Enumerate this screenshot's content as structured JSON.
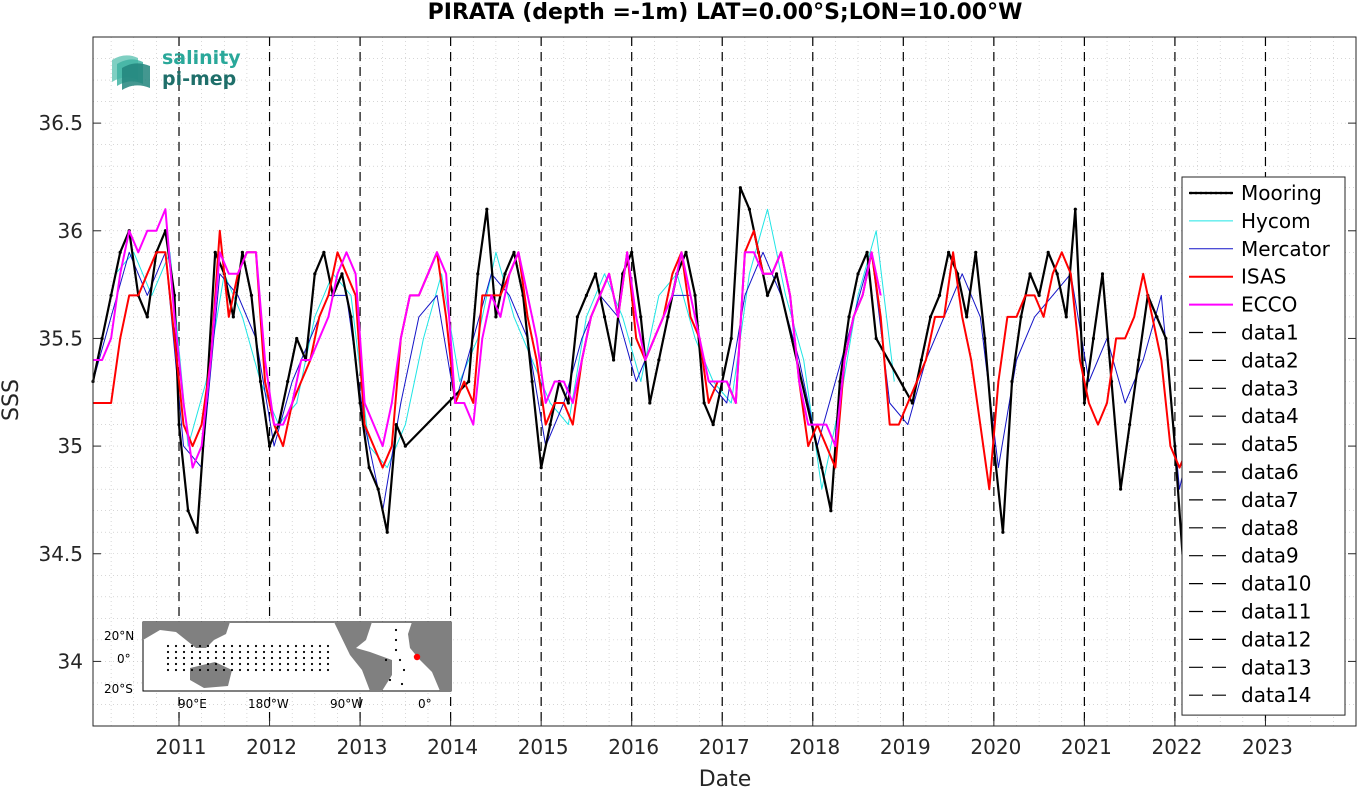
{
  "chart_data": {
    "type": "line",
    "title": "PIRATA (depth =-1m) LAT=0.00°S;LON=10.00°W",
    "xlabel": "Date",
    "ylabel": "SSS",
    "xlim": [
      2010.05,
      2024.0
    ],
    "ylim": [
      33.7,
      36.9
    ],
    "grid": true,
    "legend_position": "right",
    "x_ticks": [
      2011,
      2012,
      2013,
      2014,
      2015,
      2016,
      2017,
      2018,
      2019,
      2020,
      2021,
      2022,
      2023
    ],
    "x_tick_labels": [
      "2011",
      "2012",
      "2013",
      "2014",
      "2015",
      "2016",
      "2017",
      "2018",
      "2019",
      "2020",
      "2021",
      "2022",
      "2023"
    ],
    "y_ticks": [
      34,
      34.5,
      35,
      35.5,
      36,
      36.5
    ],
    "y_tick_labels": [
      "34",
      "34.5",
      "35",
      "35.5",
      "36",
      "36.5"
    ],
    "vlines": [
      2011,
      2012,
      2013,
      2014,
      2015,
      2016,
      2017,
      2018,
      2019,
      2020,
      2021,
      2022,
      2023
    ],
    "series": [
      {
        "name": "Mooring",
        "color": "#000000",
        "style": "solid-dots",
        "x": [
          2010.05,
          2010.15,
          2010.25,
          2010.35,
          2010.45,
          2010.55,
          2010.65,
          2010.75,
          2010.85,
          2010.95,
          2011.0,
          2011.1,
          2011.2,
          2011.3,
          2011.4,
          2011.5,
          2011.6,
          2011.7,
          2011.8,
          2011.9,
          2012.0,
          2012.1,
          2012.2,
          2012.3,
          2012.4,
          2012.5,
          2012.6,
          2012.7,
          2012.8,
          2012.9,
          2013.0,
          2013.1,
          2013.2,
          2013.3,
          2013.4,
          2013.5,
          2014.2,
          2014.3,
          2014.4,
          2014.5,
          2014.6,
          2014.7,
          2014.8,
          2014.9,
          2015.0,
          2015.1,
          2015.2,
          2015.3,
          2015.4,
          2015.5,
          2015.6,
          2015.7,
          2015.8,
          2015.9,
          2016.0,
          2016.1,
          2016.2,
          2016.3,
          2016.4,
          2016.5,
          2016.6,
          2016.7,
          2016.8,
          2016.9,
          2017.0,
          2017.1,
          2017.2,
          2017.3,
          2017.4,
          2017.5,
          2017.6,
          2018.1,
          2018.2,
          2018.3,
          2018.4,
          2018.5,
          2018.6,
          2018.7,
          2019.1,
          2019.2,
          2019.3,
          2019.4,
          2019.5,
          2019.6,
          2019.7,
          2019.8,
          2019.9,
          2020.0,
          2020.1,
          2020.2,
          2020.3,
          2020.4,
          2020.5,
          2020.6,
          2020.7,
          2020.8,
          2020.9,
          2021.0,
          2021.1,
          2021.2,
          2021.3,
          2021.4,
          2021.5,
          2021.6,
          2021.7,
          2021.8,
          2021.9,
          2022.0,
          2022.1,
          2022.2,
          2022.3,
          2022.4
        ],
        "y": [
          35.3,
          35.5,
          35.7,
          35.9,
          36.0,
          35.7,
          35.6,
          35.9,
          36.0,
          35.7,
          35.1,
          34.7,
          34.6,
          35.2,
          35.9,
          35.8,
          35.6,
          35.9,
          35.7,
          35.3,
          35.0,
          35.1,
          35.3,
          35.5,
          35.4,
          35.8,
          35.9,
          35.7,
          35.8,
          35.6,
          35.2,
          34.9,
          34.8,
          34.6,
          35.1,
          35.0,
          35.3,
          35.8,
          36.1,
          35.6,
          35.8,
          35.9,
          35.7,
          35.3,
          34.9,
          35.1,
          35.3,
          35.2,
          35.6,
          35.7,
          35.8,
          35.6,
          35.4,
          35.8,
          35.9,
          35.6,
          35.2,
          35.4,
          35.6,
          35.8,
          35.9,
          35.7,
          35.2,
          35.1,
          35.3,
          35.5,
          36.2,
          36.1,
          35.9,
          35.7,
          35.8,
          34.9,
          34.7,
          35.3,
          35.6,
          35.8,
          35.9,
          35.5,
          35.2,
          35.4,
          35.6,
          35.7,
          35.9,
          35.8,
          35.6,
          35.9,
          35.5,
          35.0,
          34.6,
          35.3,
          35.6,
          35.8,
          35.7,
          35.9,
          35.8,
          35.6,
          36.1,
          35.2,
          35.5,
          35.8,
          35.3,
          34.8,
          35.1,
          35.4,
          35.7,
          35.6,
          35.5,
          35.0,
          34.4,
          35.0,
          35.3,
          35.6
        ]
      },
      {
        "name": "Hycom",
        "color": "#1ee5e5",
        "style": "solid",
        "x": [
          2010.1,
          2010.3,
          2010.5,
          2010.7,
          2010.9,
          2011.1,
          2011.3,
          2011.5,
          2011.7,
          2011.9,
          2012.1,
          2012.3,
          2012.5,
          2012.7,
          2012.9,
          2013.1,
          2013.3,
          2013.5,
          2013.7,
          2013.9,
          2014.1,
          2014.3,
          2014.5,
          2014.7,
          2014.9,
          2015.1,
          2015.3,
          2015.5,
          2015.7,
          2015.9,
          2016.1,
          2016.3,
          2016.5,
          2016.7,
          2016.9,
          2017.1,
          2017.3,
          2017.5,
          2017.7,
          2017.9,
          2018.1,
          2018.3,
          2018.5,
          2018.7,
          2018.9
        ],
        "y": [
          35.4,
          35.8,
          35.9,
          35.7,
          35.9,
          35.0,
          35.3,
          35.8,
          35.6,
          35.3,
          35.1,
          35.2,
          35.6,
          35.8,
          35.7,
          35.0,
          34.9,
          35.1,
          35.5,
          35.8,
          35.3,
          35.5,
          35.9,
          35.6,
          35.4,
          35.2,
          35.1,
          35.6,
          35.8,
          35.6,
          35.3,
          35.7,
          35.8,
          35.5,
          35.3,
          35.2,
          35.8,
          36.1,
          35.7,
          35.4,
          34.8,
          35.2,
          35.7,
          36.0,
          35.3
        ]
      },
      {
        "name": "Mercator",
        "color": "#1414c8",
        "style": "solid",
        "x": [
          2010.05,
          2010.25,
          2010.45,
          2010.65,
          2010.85,
          2011.05,
          2011.25,
          2011.45,
          2011.65,
          2011.85,
          2012.05,
          2012.25,
          2012.45,
          2012.65,
          2012.85,
          2013.05,
          2013.25,
          2013.45,
          2013.65,
          2013.85,
          2014.05,
          2014.25,
          2014.45,
          2014.65,
          2014.85,
          2015.05,
          2015.25,
          2015.45,
          2015.65,
          2015.85,
          2016.05,
          2016.25,
          2016.45,
          2016.65,
          2016.85,
          2017.05,
          2017.25,
          2017.45,
          2017.65,
          2017.85,
          2018.05,
          2018.25,
          2018.45,
          2018.65,
          2018.85,
          2019.05,
          2019.25,
          2019.45,
          2019.65,
          2019.85,
          2020.05,
          2020.25,
          2020.45,
          2020.65,
          2020.85,
          2021.05,
          2021.25,
          2021.45,
          2021.65,
          2021.85,
          2022.05,
          2022.25,
          2022.45
        ],
        "y": [
          35.3,
          35.6,
          35.9,
          35.7,
          35.9,
          35.0,
          34.9,
          35.8,
          35.7,
          35.5,
          35.0,
          35.3,
          35.5,
          35.7,
          35.7,
          35.1,
          34.7,
          35.2,
          35.6,
          35.7,
          35.2,
          35.5,
          35.8,
          35.7,
          35.5,
          35.0,
          35.2,
          35.5,
          35.7,
          35.6,
          35.3,
          35.5,
          35.7,
          35.7,
          35.3,
          35.2,
          35.7,
          35.9,
          35.7,
          35.4,
          35.0,
          35.3,
          35.6,
          35.9,
          35.2,
          35.1,
          35.4,
          35.6,
          35.8,
          35.6,
          34.9,
          35.4,
          35.6,
          35.7,
          35.8,
          35.3,
          35.5,
          35.2,
          35.4,
          35.7,
          34.8,
          35.2,
          35.5
        ]
      },
      {
        "name": "ISAS",
        "color": "#ff0000",
        "style": "solid",
        "x": [
          2010.05,
          2010.15,
          2010.25,
          2010.35,
          2010.45,
          2010.55,
          2010.65,
          2010.75,
          2010.85,
          2010.95,
          2011.05,
          2011.15,
          2011.25,
          2011.35,
          2011.45,
          2011.55,
          2011.65,
          2011.75,
          2011.85,
          2011.95,
          2012.05,
          2012.15,
          2012.25,
          2012.35,
          2012.45,
          2012.55,
          2012.65,
          2012.75,
          2012.85,
          2012.95,
          2013.05,
          2013.15,
          2013.25,
          2013.35,
          2013.45,
          2013.55,
          2013.65,
          2013.75,
          2013.85,
          2013.95,
          2014.05,
          2014.15,
          2014.25,
          2014.35,
          2014.45,
          2014.55,
          2014.65,
          2014.75,
          2014.85,
          2014.95,
          2015.05,
          2015.15,
          2015.25,
          2015.35,
          2015.45,
          2015.55,
          2015.65,
          2015.75,
          2015.85,
          2015.95,
          2016.05,
          2016.15,
          2016.25,
          2016.35,
          2016.45,
          2016.55,
          2016.65,
          2016.75,
          2016.85,
          2016.95,
          2017.05,
          2017.15,
          2017.25,
          2017.35,
          2017.45,
          2017.55,
          2017.65,
          2017.75,
          2017.85,
          2017.95,
          2018.05,
          2018.15,
          2018.25,
          2018.35,
          2018.45,
          2018.55,
          2018.65,
          2018.75,
          2018.85,
          2018.95,
          2019.05,
          2019.15,
          2019.25,
          2019.35,
          2019.45,
          2019.55,
          2019.65,
          2019.75,
          2019.85,
          2019.95,
          2020.05,
          2020.15,
          2020.25,
          2020.35,
          2020.45,
          2020.55,
          2020.65,
          2020.75,
          2020.85,
          2020.95,
          2021.05,
          2021.15,
          2021.25,
          2021.35,
          2021.45,
          2021.55,
          2021.65,
          2021.75,
          2021.85,
          2021.95,
          2022.05,
          2022.15,
          2022.25,
          2022.35,
          2022.45
        ],
        "y": [
          35.2,
          35.2,
          35.2,
          35.5,
          35.7,
          35.7,
          35.8,
          35.9,
          35.9,
          35.5,
          35.1,
          35.0,
          35.1,
          35.4,
          36.0,
          35.6,
          35.8,
          35.9,
          35.9,
          35.3,
          35.1,
          35.0,
          35.2,
          35.3,
          35.4,
          35.6,
          35.7,
          35.9,
          35.8,
          35.7,
          35.1,
          35.0,
          34.9,
          35.0,
          35.5,
          35.7,
          35.7,
          35.8,
          35.9,
          35.6,
          35.2,
          35.3,
          35.2,
          35.7,
          35.7,
          35.7,
          35.8,
          35.9,
          35.6,
          35.4,
          35.1,
          35.2,
          35.2,
          35.1,
          35.4,
          35.6,
          35.7,
          35.8,
          35.6,
          35.9,
          35.5,
          35.4,
          35.5,
          35.6,
          35.8,
          35.9,
          35.6,
          35.5,
          35.2,
          35.3,
          35.3,
          35.2,
          35.9,
          36.0,
          35.8,
          35.8,
          35.9,
          35.7,
          35.3,
          35.0,
          35.1,
          35.0,
          34.9,
          35.4,
          35.6,
          35.7,
          35.9,
          35.6,
          35.1,
          35.1,
          35.2,
          35.3,
          35.4,
          35.6,
          35.6,
          35.9,
          35.6,
          35.4,
          35.1,
          34.8,
          35.3,
          35.6,
          35.6,
          35.7,
          35.7,
          35.6,
          35.8,
          35.9,
          35.8,
          35.4,
          35.2,
          35.1,
          35.2,
          35.5,
          35.5,
          35.6,
          35.8,
          35.6,
          35.4,
          35.0,
          34.9,
          35.0,
          35.3,
          35.4,
          35.4
        ]
      },
      {
        "name": "ECCO",
        "color": "#ff00ff",
        "style": "solid",
        "x": [
          2010.05,
          2010.15,
          2010.25,
          2010.35,
          2010.45,
          2010.55,
          2010.65,
          2010.75,
          2010.85,
          2010.95,
          2011.05,
          2011.15,
          2011.25,
          2011.35,
          2011.45,
          2011.55,
          2011.65,
          2011.75,
          2011.85,
          2011.95,
          2012.05,
          2012.15,
          2012.25,
          2012.35,
          2012.45,
          2012.55,
          2012.65,
          2012.75,
          2012.85,
          2012.95,
          2013.05,
          2013.15,
          2013.25,
          2013.35,
          2013.45,
          2013.55,
          2013.65,
          2013.75,
          2013.85,
          2013.95,
          2014.05,
          2014.15,
          2014.25,
          2014.35,
          2014.45,
          2014.55,
          2014.65,
          2014.75,
          2014.85,
          2014.95,
          2015.05,
          2015.15,
          2015.25,
          2015.35,
          2015.45,
          2015.55,
          2015.65,
          2015.75,
          2015.85,
          2015.95,
          2016.05,
          2016.15,
          2016.25,
          2016.35,
          2016.45,
          2016.55,
          2016.65,
          2016.75,
          2016.85,
          2016.95,
          2017.05,
          2017.15,
          2017.25,
          2017.35,
          2017.45,
          2017.55,
          2017.65,
          2017.75,
          2017.85,
          2017.95,
          2018.05,
          2018.15,
          2018.25,
          2018.35,
          2018.45,
          2018.55,
          2018.65,
          2018.75
        ],
        "y": [
          35.4,
          35.4,
          35.5,
          35.8,
          36.0,
          35.9,
          36.0,
          36.0,
          36.1,
          35.6,
          35.2,
          34.9,
          35.0,
          35.4,
          35.9,
          35.8,
          35.8,
          35.9,
          35.9,
          35.4,
          35.1,
          35.1,
          35.2,
          35.4,
          35.4,
          35.5,
          35.6,
          35.8,
          35.9,
          35.8,
          35.2,
          35.1,
          35.0,
          35.2,
          35.5,
          35.7,
          35.7,
          35.8,
          35.9,
          35.8,
          35.2,
          35.2,
          35.1,
          35.5,
          35.7,
          35.6,
          35.8,
          35.9,
          35.7,
          35.5,
          35.2,
          35.3,
          35.3,
          35.2,
          35.4,
          35.6,
          35.7,
          35.8,
          35.6,
          35.9,
          35.6,
          35.4,
          35.5,
          35.6,
          35.7,
          35.9,
          35.7,
          35.5,
          35.3,
          35.3,
          35.3,
          35.2,
          35.9,
          35.9,
          35.8,
          35.8,
          35.9,
          35.7,
          35.3,
          35.1,
          35.1,
          35.1,
          35.0,
          35.4,
          35.6,
          35.7,
          35.9,
          35.7
        ]
      }
    ],
    "legend_entries": [
      "Mooring",
      "Hycom",
      "Mercator",
      "ISAS",
      "ECCO",
      "data1",
      "data2",
      "data3",
      "data4",
      "data5",
      "data6",
      "data7",
      "data8",
      "data9",
      "data10",
      "data11",
      "data12",
      "data13",
      "data14"
    ]
  },
  "logo": {
    "line1": "salinity",
    "line2": "pi-mep"
  },
  "inset_map": {
    "lat_ticks": [
      "20°N",
      "0°",
      "20°S"
    ],
    "lon_ticks": [
      "90°E",
      "180°W",
      "90°W",
      "0°"
    ],
    "marker_color": "#ff0000"
  }
}
